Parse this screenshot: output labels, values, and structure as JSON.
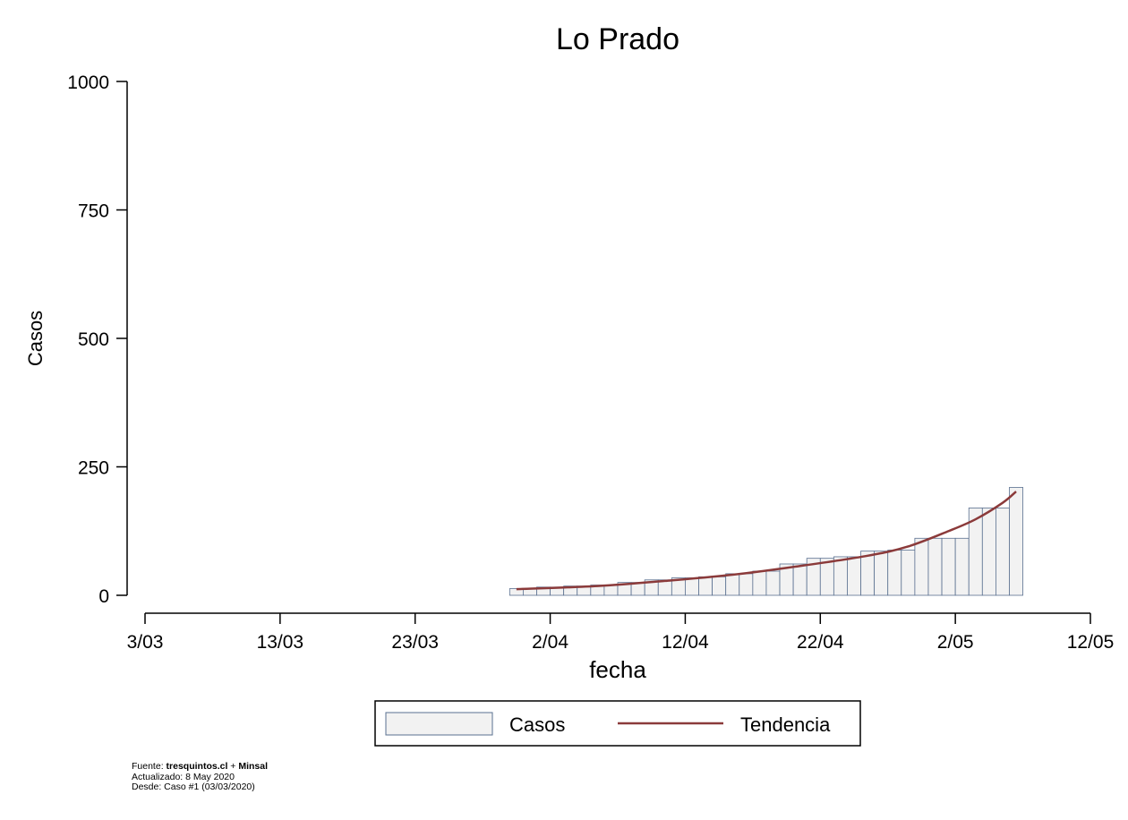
{
  "chart_data": {
    "type": "bar",
    "title": "Lo Prado",
    "xlabel": "fecha",
    "ylabel": "Casos",
    "ylim": [
      0,
      1000
    ],
    "yticks": [
      0,
      250,
      500,
      750,
      1000
    ],
    "xlim": [
      "3/03",
      "12/05"
    ],
    "xticks": [
      "3/03",
      "13/03",
      "23/03",
      "2/04",
      "12/04",
      "22/04",
      "2/05",
      "12/05"
    ],
    "grid": false,
    "legend_position": "bottom",
    "legend": [
      "Casos",
      "Tendencia"
    ],
    "colors": {
      "bars_fill": "#f2f2f2",
      "bars_edge": "#5a7090",
      "trend": "#8b3a3a"
    },
    "series": [
      {
        "name": "Casos",
        "type": "bar",
        "start_date": "30/03",
        "values": [
          13,
          13,
          16,
          16,
          18,
          18,
          20,
          20,
          25,
          25,
          30,
          30,
          34,
          34,
          36,
          36,
          42,
          42,
          47,
          47,
          61,
          61,
          72,
          72,
          75,
          75,
          86,
          86,
          88,
          88,
          111,
          111,
          111,
          111,
          170,
          170,
          170,
          210
        ]
      },
      {
        "name": "Tendencia",
        "type": "line",
        "x": [
          "30/03",
          "5/04",
          "10/04",
          "15/04",
          "20/04",
          "25/04",
          "28/04",
          "1/05",
          "3/05",
          "5/05",
          "6/05"
        ],
        "values": [
          12,
          18,
          28,
          40,
          57,
          77,
          95,
          125,
          148,
          180,
          202
        ]
      }
    ]
  },
  "footer": {
    "fuente_label": "Fuente: ",
    "fuente_sources": "tresquintos.cl",
    "fuente_plus": " + ",
    "fuente_minsal": "Minsal",
    "actualizado": "Actualizado: 8 May 2020",
    "desde": "Desde: Caso #1  (03/03/2020)"
  }
}
